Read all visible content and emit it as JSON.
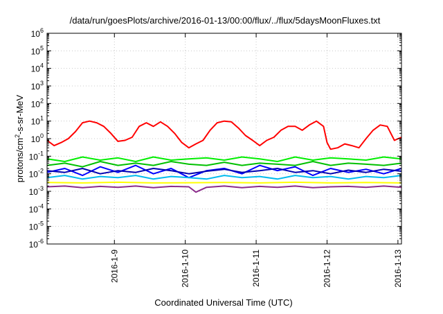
{
  "chart_data": {
    "type": "line",
    "title": "/data/run/goesPlots/archive/2016-01-13/00:00/flux/../flux/5daysMoonFluxes.txt",
    "xlabel": "Coordinated Universal Time (UTC)",
    "ylabel": {
      "prefix": "protons/cm",
      "sup": "2",
      "suffix": "-s-sr-MeV"
    },
    "x_range_days": [
      0,
      5
    ],
    "x_ticks": [
      {
        "day": 0.95,
        "label": "2016-1-9"
      },
      {
        "day": 1.95,
        "label": "2016-1-10"
      },
      {
        "day": 2.95,
        "label": "2016-1-11"
      },
      {
        "day": 3.95,
        "label": "2016-1-12"
      },
      {
        "day": 4.95,
        "label": "2016-1-13"
      }
    ],
    "y_scale": "log",
    "ylim": [
      1e-06,
      1000000.0
    ],
    "y_ticks": [
      {
        "exp": 6,
        "base": "10",
        "sup": "6"
      },
      {
        "exp": 5,
        "base": "10",
        "sup": "5"
      },
      {
        "exp": 4,
        "base": "10",
        "sup": "4"
      },
      {
        "exp": 3,
        "base": "10",
        "sup": "3"
      },
      {
        "exp": 2,
        "base": "10",
        "sup": "2"
      },
      {
        "exp": 1,
        "base": "10",
        "sup": "1"
      },
      {
        "exp": 0,
        "base": "10",
        "sup": "0"
      },
      {
        "exp": -1,
        "base": "10",
        "sup": "-1"
      },
      {
        "exp": -2,
        "base": "10",
        "sup": "-2"
      },
      {
        "exp": -3,
        "base": "10",
        "sup": "-3"
      },
      {
        "exp": -4,
        "base": "10",
        "sup": "-4"
      },
      {
        "exp": -5,
        "base": "10",
        "sup": "-5"
      },
      {
        "exp": -6,
        "base": "10",
        "sup": "-6"
      }
    ],
    "grid": true,
    "legend": "none",
    "series": [
      {
        "color": "#ff0000",
        "x": [
          0,
          0.1,
          0.2,
          0.3,
          0.4,
          0.5,
          0.6,
          0.7,
          0.8,
          0.9,
          1.0,
          1.1,
          1.2,
          1.3,
          1.4,
          1.5,
          1.6,
          1.7,
          1.8,
          1.9,
          2.0,
          2.1,
          2.2,
          2.3,
          2.4,
          2.5,
          2.6,
          2.7,
          2.8,
          2.9,
          3.0,
          3.1,
          3.2,
          3.3,
          3.4,
          3.5,
          3.6,
          3.7,
          3.8,
          3.9,
          3.95,
          4.0,
          4.1,
          4.2,
          4.3,
          4.4,
          4.5,
          4.6,
          4.7,
          4.8,
          4.9,
          5.0
        ],
        "y": [
          0.8,
          0.4,
          0.6,
          1.0,
          2.5,
          8.0,
          10,
          8.0,
          5.0,
          2.0,
          0.7,
          0.8,
          1.2,
          5.0,
          8.0,
          5.0,
          9.0,
          5.0,
          2.0,
          0.6,
          0.3,
          0.5,
          0.8,
          3.0,
          8.0,
          10,
          9.0,
          4.0,
          1.5,
          0.8,
          0.4,
          0.8,
          1.2,
          3.0,
          5.0,
          5.0,
          3.0,
          6.0,
          10,
          5.0,
          0.6,
          0.25,
          0.3,
          0.5,
          0.4,
          0.3,
          1.0,
          3.0,
          6.0,
          5.0,
          0.8,
          1.2
        ]
      },
      {
        "color": "#00ee00",
        "x": [
          0,
          0.25,
          0.5,
          0.75,
          1.0,
          1.25,
          1.5,
          1.75,
          2.0,
          2.25,
          2.5,
          2.75,
          3.0,
          3.25,
          3.5,
          3.75,
          4.0,
          4.25,
          4.5,
          4.75,
          5.0
        ],
        "y": [
          0.07,
          0.05,
          0.09,
          0.06,
          0.08,
          0.05,
          0.09,
          0.06,
          0.07,
          0.08,
          0.06,
          0.09,
          0.07,
          0.05,
          0.09,
          0.06,
          0.08,
          0.07,
          0.06,
          0.09,
          0.07
        ]
      },
      {
        "color": "#00c000",
        "x": [
          0,
          0.25,
          0.5,
          0.75,
          1.0,
          1.25,
          1.5,
          1.75,
          2.0,
          2.25,
          2.5,
          2.75,
          3.0,
          3.25,
          3.5,
          3.75,
          4.0,
          4.25,
          4.5,
          4.75,
          5.0
        ],
        "y": [
          0.03,
          0.04,
          0.025,
          0.05,
          0.03,
          0.04,
          0.03,
          0.05,
          0.035,
          0.03,
          0.045,
          0.03,
          0.04,
          0.035,
          0.03,
          0.05,
          0.03,
          0.04,
          0.035,
          0.03,
          0.04
        ]
      },
      {
        "color": "#0000ff",
        "x": [
          0,
          0.25,
          0.5,
          0.75,
          1.0,
          1.25,
          1.5,
          1.75,
          2.0,
          2.25,
          2.5,
          2.75,
          3.0,
          3.25,
          3.5,
          3.75,
          4.0,
          4.25,
          4.5,
          4.75,
          5.0
        ],
        "y": [
          0.012,
          0.02,
          0.008,
          0.025,
          0.012,
          0.03,
          0.01,
          0.02,
          0.006,
          0.015,
          0.02,
          0.01,
          0.03,
          0.015,
          0.025,
          0.008,
          0.02,
          0.012,
          0.018,
          0.01,
          0.02
        ]
      },
      {
        "color": "#0000b0",
        "x": [
          0,
          0.25,
          0.5,
          0.75,
          1.0,
          1.25,
          1.5,
          1.75,
          2.0,
          2.25,
          2.5,
          2.75,
          3.0,
          3.25,
          3.5,
          3.75,
          4.0,
          4.25,
          4.5,
          4.75,
          5.0
        ],
        "y": [
          0.015,
          0.012,
          0.02,
          0.01,
          0.015,
          0.012,
          0.02,
          0.015,
          0.01,
          0.014,
          0.018,
          0.012,
          0.015,
          0.02,
          0.012,
          0.015,
          0.01,
          0.016,
          0.012,
          0.018,
          0.014
        ]
      },
      {
        "color": "#00bbee",
        "x": [
          0,
          0.25,
          0.5,
          0.75,
          1.0,
          1.25,
          1.5,
          1.75,
          2.0,
          2.25,
          2.5,
          2.75,
          3.0,
          3.25,
          3.5,
          3.75,
          4.0,
          4.25,
          4.5,
          4.75,
          5.0
        ],
        "y": [
          0.006,
          0.008,
          0.005,
          0.007,
          0.006,
          0.008,
          0.005,
          0.007,
          0.006,
          0.005,
          0.008,
          0.006,
          0.007,
          0.005,
          0.008,
          0.006,
          0.007,
          0.005,
          0.007,
          0.006,
          0.008
        ]
      },
      {
        "color": "#ffff00",
        "x": [
          0,
          0.5,
          1.0,
          1.5,
          2.0,
          2.5,
          3.0,
          3.5,
          4.0,
          4.5,
          5.0
        ],
        "y": [
          0.0032,
          0.003,
          0.0033,
          0.003,
          0.0031,
          0.0032,
          0.003,
          0.0033,
          0.003,
          0.0032,
          0.003
        ]
      },
      {
        "color": "#8b2c8b",
        "x": [
          0,
          0.25,
          0.5,
          0.75,
          1.0,
          1.25,
          1.5,
          1.75,
          2.0,
          2.1,
          2.25,
          2.5,
          2.75,
          3.0,
          3.25,
          3.5,
          3.75,
          4.0,
          4.25,
          4.5,
          4.75,
          5.0
        ],
        "y": [
          0.0018,
          0.002,
          0.0016,
          0.0019,
          0.0017,
          0.002,
          0.0016,
          0.0019,
          0.0018,
          0.0009,
          0.0017,
          0.002,
          0.0016,
          0.0019,
          0.0017,
          0.002,
          0.0016,
          0.0018,
          0.0019,
          0.0017,
          0.002,
          0.0017
        ]
      }
    ]
  }
}
